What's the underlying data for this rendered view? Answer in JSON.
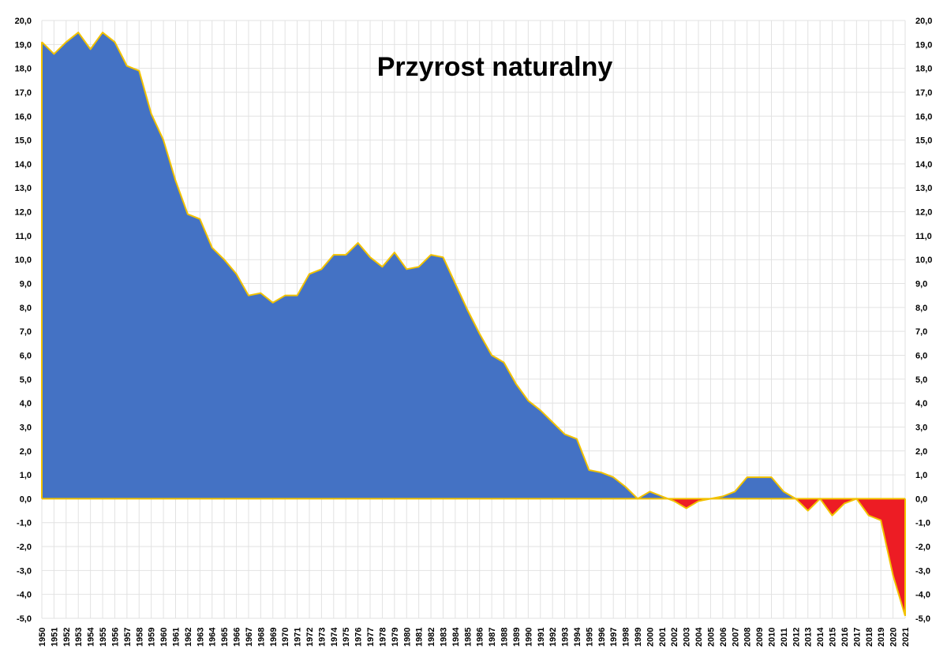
{
  "chart_data": {
    "type": "area",
    "title": "Przyrost naturalny",
    "xlabel": "",
    "ylabel": "",
    "ylim": [
      -5,
      20
    ],
    "ytick_step": 1,
    "grid": true,
    "legend": "none",
    "colors": {
      "positive": "#4472c4",
      "negative": "#ed1c24",
      "line": "#f2c200",
      "grid": "#e2e2e2"
    },
    "x": [
      1950,
      1951,
      1952,
      1953,
      1954,
      1955,
      1956,
      1957,
      1958,
      1959,
      1960,
      1961,
      1962,
      1963,
      1964,
      1965,
      1966,
      1967,
      1968,
      1969,
      1970,
      1971,
      1972,
      1973,
      1974,
      1975,
      1976,
      1977,
      1978,
      1979,
      1980,
      1981,
      1982,
      1983,
      1984,
      1985,
      1986,
      1987,
      1988,
      1989,
      1990,
      1991,
      1992,
      1993,
      1994,
      1995,
      1996,
      1997,
      1998,
      1999,
      2000,
      2001,
      2002,
      2003,
      2004,
      2005,
      2006,
      2007,
      2008,
      2009,
      2010,
      2011,
      2012,
      2013,
      2014,
      2015,
      2016,
      2017,
      2018,
      2019,
      2020,
      2021
    ],
    "values": [
      19.1,
      18.6,
      19.1,
      19.5,
      18.8,
      19.5,
      19.1,
      18.1,
      17.9,
      16.1,
      15.0,
      13.3,
      11.9,
      11.7,
      10.5,
      10.0,
      9.4,
      8.5,
      8.6,
      8.2,
      8.5,
      8.5,
      9.4,
      9.6,
      10.2,
      10.2,
      10.7,
      10.1,
      9.7,
      10.3,
      9.6,
      9.7,
      10.2,
      10.1,
      9.0,
      7.9,
      6.9,
      6.0,
      5.7,
      4.8,
      4.1,
      3.7,
      3.2,
      2.7,
      2.5,
      1.2,
      1.1,
      0.9,
      0.5,
      0.0,
      0.3,
      0.1,
      -0.1,
      -0.4,
      -0.1,
      0.0,
      0.1,
      0.3,
      0.9,
      0.9,
      0.9,
      0.3,
      0.0,
      -0.5,
      0.0,
      -0.7,
      -0.2,
      0.0,
      -0.7,
      -0.9,
      -3.2,
      -4.9
    ],
    "y_tick_labels": [
      "-5,0",
      "-4,0",
      "-3,0",
      "-2,0",
      "-1,0",
      "0,0",
      "1,0",
      "2,0",
      "3,0",
      "4,0",
      "5,0",
      "6,0",
      "7,0",
      "8,0",
      "9,0",
      "10,0",
      "11,0",
      "12,0",
      "13,0",
      "14,0",
      "15,0",
      "16,0",
      "17,0",
      "18,0",
      "19,0",
      "20,0"
    ]
  }
}
